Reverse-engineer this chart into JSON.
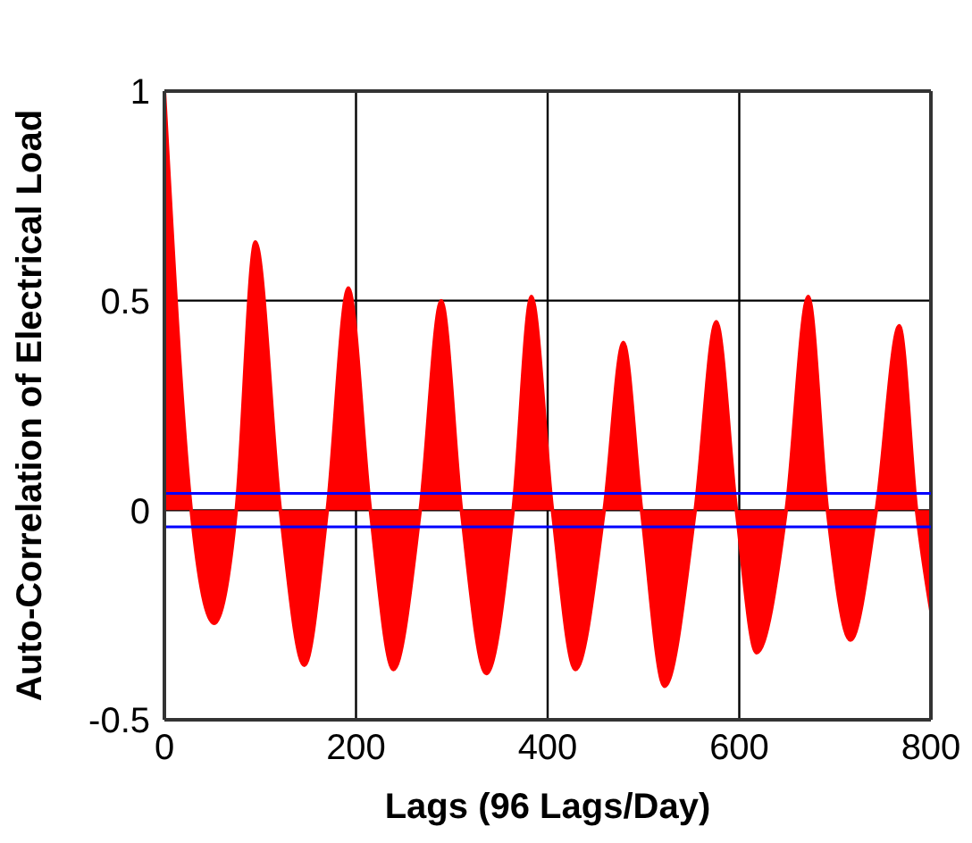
{
  "chart_data": {
    "type": "area",
    "xlabel": "Lags (96 Lags/Day)",
    "ylabel": "Auto-Correlation of Electrical Load",
    "x": [
      0,
      28,
      52,
      75,
      95,
      121,
      146,
      170,
      192,
      215,
      239,
      267,
      289,
      310,
      336,
      364,
      383,
      405,
      429,
      459,
      479,
      498,
      522,
      554,
      576,
      597,
      618,
      649,
      672,
      692,
      716,
      743,
      767,
      785,
      800
    ],
    "series": [
      {
        "color": "#ff0000",
        "values": [
          1,
          0,
          -0.27,
          0,
          0.64,
          0,
          -0.37,
          0,
          0.53,
          0,
          -0.38,
          0,
          0.5,
          0,
          -0.39,
          0,
          0.51,
          0,
          -0.38,
          0,
          0.4,
          0,
          -0.42,
          0,
          0.45,
          0,
          -0.34,
          0,
          0.51,
          0,
          -0.31,
          0,
          0.44,
          0,
          -0.24
        ]
      }
    ],
    "xlim": [
      0,
      800
    ],
    "xticks": [
      0,
      200,
      400,
      600,
      800
    ],
    "ylim": [
      -0.5,
      1
    ],
    "yticks": [
      -0.5,
      0,
      0.5,
      1
    ],
    "grid": true,
    "ref_lines": [
      {
        "axis": "y",
        "value": 0.04,
        "color": "#0000ff"
      },
      {
        "axis": "y",
        "value": -0.04,
        "color": "#0000ff"
      }
    ]
  }
}
